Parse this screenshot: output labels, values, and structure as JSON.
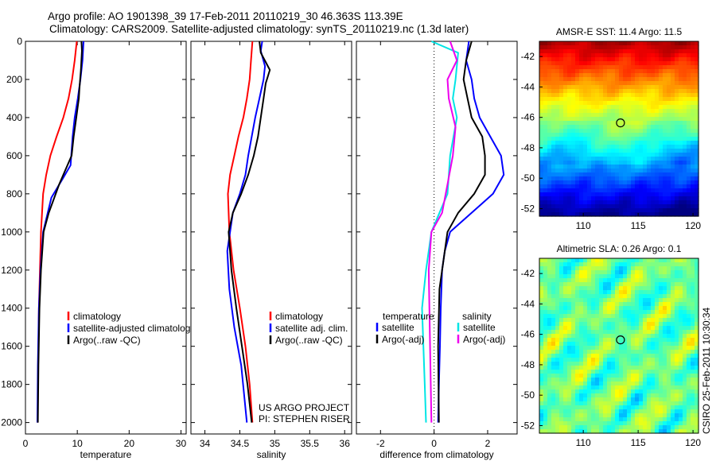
{
  "title": {
    "line1": "Argo profile: AO 1901398_39 17-Feb-2011 20110219_30 46.363S 113.39E",
    "line2": "Climatology: CARS2009. Satellite-adjusted climatology: synTS_20110219.nc (1.3d later)"
  },
  "side_label": "CSIRO 25-Feb-2011 10:30:34",
  "project_text": {
    "line1": "US ARGO PROJECT",
    "line2": "PI: STEPHEN RISER"
  },
  "colors": {
    "climatology": "#ff0000",
    "satellite": "#0000ff",
    "argo": "#000000",
    "cyan": "#00e5e5",
    "magenta": "#ee00ee"
  },
  "chart_data": [
    {
      "type": "line",
      "xlabel": "temperature",
      "xlim": [
        0,
        31
      ],
      "xticks": [
        0,
        10,
        20,
        30
      ],
      "ylim": [
        2060,
        0
      ],
      "yticks": [
        0,
        200,
        400,
        600,
        800,
        1000,
        1200,
        1400,
        1600,
        1800,
        2000
      ],
      "legend": [
        "climatology",
        "satellite-adjusted climatology",
        "Argo(..raw -QC)"
      ],
      "series": [
        {
          "name": "climatology",
          "color": "#ff0000",
          "x": [
            9.9,
            9.5,
            9.0,
            8.3,
            7.3,
            6.0,
            4.8,
            4.0,
            3.4,
            3.0,
            2.8,
            2.6,
            2.45,
            2.35
          ],
          "y": [
            0,
            100,
            200,
            300,
            400,
            500,
            600,
            700,
            800,
            1000,
            1200,
            1400,
            1700,
            2000
          ]
        },
        {
          "name": "satellite-adjusted climatology",
          "color": "#0000ff",
          "x": [
            11.2,
            11.0,
            10.6,
            10.1,
            9.5,
            9.1,
            8.7,
            7.2,
            5.0,
            3.4,
            2.9,
            2.6,
            2.4,
            2.3
          ],
          "y": [
            0,
            100,
            200,
            300,
            400,
            500,
            650,
            720,
            820,
            1000,
            1200,
            1400,
            1700,
            2000
          ]
        },
        {
          "name": "Argo(..raw -QC)",
          "color": "#000000",
          "x": [
            10.8,
            10.9,
            10.7,
            10.4,
            10.3,
            9.8,
            9.3,
            8.9,
            6.5,
            4.5,
            3.5,
            3.0,
            2.7,
            2.5,
            2.4
          ],
          "y": [
            0,
            50,
            150,
            250,
            300,
            400,
            500,
            600,
            750,
            900,
            1000,
            1200,
            1400,
            1700,
            2000
          ]
        }
      ]
    },
    {
      "type": "line",
      "xlabel": "salinity",
      "xlim": [
        33.8,
        36.1
      ],
      "xticks": [
        34,
        34.5,
        35,
        35.5,
        36
      ],
      "ylim": [
        2060,
        0
      ],
      "yticks": [
        0,
        200,
        400,
        600,
        800,
        1000,
        1200,
        1400,
        1600,
        1800,
        2000
      ],
      "legend": [
        "climatology",
        "satellite adj. clim.",
        "Argo(..raw -QC)"
      ],
      "series": [
        {
          "name": "climatology",
          "color": "#ff0000",
          "x": [
            34.68,
            34.66,
            34.64,
            34.6,
            34.55,
            34.48,
            34.42,
            34.36,
            34.33,
            34.35,
            34.41,
            34.5,
            34.58,
            34.64,
            34.68
          ],
          "y": [
            0,
            100,
            200,
            300,
            400,
            500,
            600,
            700,
            800,
            1000,
            1200,
            1400,
            1600,
            1800,
            2000
          ]
        },
        {
          "name": "satellite adj. clim.",
          "color": "#0000ff",
          "x": [
            34.82,
            34.8,
            34.86,
            34.84,
            34.78,
            34.72,
            34.67,
            34.62,
            34.58,
            34.5,
            34.4,
            34.32,
            34.35,
            34.42,
            34.52,
            34.6
          ],
          "y": [
            0,
            50,
            130,
            200,
            300,
            400,
            500,
            600,
            700,
            800,
            900,
            1100,
            1300,
            1500,
            1700,
            2000
          ]
        },
        {
          "name": "Argo(..raw -QC)",
          "color": "#000000",
          "x": [
            34.78,
            34.8,
            34.93,
            34.87,
            34.84,
            34.8,
            34.76,
            34.7,
            34.62,
            34.52,
            34.4,
            34.34,
            34.38,
            34.45,
            34.53,
            34.61,
            34.67
          ],
          "y": [
            0,
            60,
            150,
            220,
            300,
            400,
            500,
            600,
            700,
            800,
            900,
            1000,
            1200,
            1400,
            1600,
            1800,
            2000
          ]
        }
      ]
    },
    {
      "type": "line",
      "xlabel": "difference from climatology",
      "xlim": [
        -2.9,
        3.1
      ],
      "xticks": [
        -2,
        0,
        2
      ],
      "ylim": [
        2060,
        0
      ],
      "yticks": [
        0,
        200,
        400,
        600,
        800,
        1000,
        1200,
        1400,
        1600,
        1800,
        2000
      ],
      "legend_headers": [
        "temperature",
        "salinity"
      ],
      "legend": [
        "satellite",
        "Argo(-adj)",
        "satellite",
        "Argo(-adj)"
      ],
      "series": [
        {
          "name": "satellite",
          "color": "#0000ff",
          "x": [
            1.3,
            1.2,
            1.4,
            1.5,
            1.7,
            2.1,
            2.5,
            2.6,
            2.2,
            1.4,
            0.6,
            0.4,
            0.3,
            0.25,
            0.22,
            0.18,
            0.15
          ],
          "y": [
            0,
            100,
            200,
            300,
            400,
            500,
            600,
            700,
            800,
            900,
            1000,
            1100,
            1200,
            1400,
            1600,
            1800,
            2000
          ]
        },
        {
          "name": "Argo(-adj)",
          "color": "#000000",
          "x": [
            1.4,
            1.2,
            1.1,
            1.25,
            1.4,
            1.8,
            1.9,
            1.9,
            1.5,
            0.9,
            0.5,
            0.4,
            0.2,
            0.15,
            0.18
          ],
          "y": [
            0,
            100,
            200,
            300,
            400,
            500,
            600,
            700,
            800,
            900,
            1000,
            1100,
            1300,
            1600,
            2000
          ]
        },
        {
          "name": "satellite",
          "color": "#00e5e5",
          "x": [
            -0.1,
            0.9,
            0.8,
            0.7,
            0.85,
            0.6,
            0.5,
            0.2,
            -0.1,
            -0.3,
            -0.45,
            -0.35,
            -0.3
          ],
          "y": [
            0,
            60,
            200,
            300,
            400,
            600,
            800,
            900,
            1000,
            1200,
            1400,
            1800,
            2000
          ]
        },
        {
          "name": "Argo(-adj)",
          "color": "#ee00ee",
          "x": [
            0.6,
            0.85,
            0.5,
            0.55,
            0.8,
            0.7,
            0.5,
            0.3,
            -0.1,
            -0.2,
            -0.15,
            -0.1
          ],
          "y": [
            0,
            100,
            200,
            300,
            450,
            600,
            750,
            900,
            1000,
            1200,
            1600,
            2000
          ]
        }
      ]
    },
    {
      "type": "heatmap",
      "title": "AMSR-E SST: 11.4 Argo: 11.5",
      "xlim": [
        106,
        120.5
      ],
      "xticks": [
        110,
        115,
        120
      ],
      "ylim": [
        -52.5,
        -41
      ],
      "yticks": [
        -42,
        -44,
        -46,
        -48,
        -50,
        -52
      ],
      "marker": {
        "lon": 113.39,
        "lat": -46.363
      }
    },
    {
      "type": "heatmap",
      "title": "Altimetric SLA: 0.26 Argo: 0.1",
      "xlim": [
        106,
        120.5
      ],
      "xticks": [
        110,
        115,
        120
      ],
      "ylim": [
        -52.5,
        -41
      ],
      "yticks": [
        -42,
        -44,
        -46,
        -48,
        -50,
        -52
      ],
      "marker": {
        "lon": 113.39,
        "lat": -46.363
      }
    }
  ]
}
